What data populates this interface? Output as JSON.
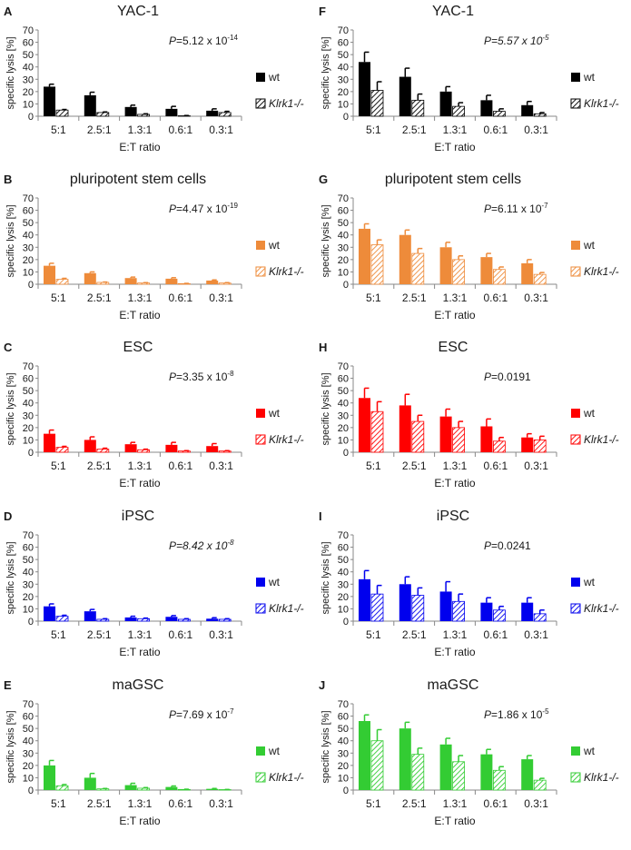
{
  "figure": {
    "ylabel": "specific lysis [%]",
    "xlabel": "E:T ratio",
    "legend_wt": "wt",
    "legend_ko": "Klrk1-/-",
    "categories": [
      "5:1",
      "2.5:1",
      "1.3:1",
      "0.6:1",
      "0.3:1"
    ]
  },
  "chart_data": [
    {
      "panel": "A",
      "type": "bar",
      "title": "YAC-1",
      "color": "#000000",
      "p_prefix": "=5.12 x 10",
      "p_exp": "-14",
      "p_italic": false,
      "ylim": [
        0,
        70
      ],
      "yticks": [
        0,
        10,
        20,
        30,
        40,
        50,
        60,
        70
      ],
      "categories": [
        "5:1",
        "2.5:1",
        "1.3:1",
        "0.6:1",
        "0.3:1"
      ],
      "series": [
        {
          "name": "wt",
          "values": [
            24,
            17,
            7.5,
            6,
            4.5
          ],
          "errors": [
            2,
            2.5,
            1.5,
            2,
            1.5
          ]
        },
        {
          "name": "Klrk1-/-",
          "values": [
            5,
            3,
            1.5,
            0.3,
            3
          ],
          "errors": [
            0.5,
            0.5,
            0.5,
            0.3,
            1
          ]
        }
      ]
    },
    {
      "panel": "B",
      "type": "bar",
      "title": "pluripotent stem cells",
      "color": "#EE8B3A",
      "p_prefix": "=4.47 x 10",
      "p_exp": "-19",
      "p_italic": false,
      "ylim": [
        0,
        70
      ],
      "yticks": [
        0,
        10,
        20,
        30,
        40,
        50,
        60,
        70
      ],
      "categories": [
        "5:1",
        "2.5:1",
        "1.3:1",
        "0.6:1",
        "0.3:1"
      ],
      "series": [
        {
          "name": "wt",
          "values": [
            15,
            9,
            5,
            4.5,
            3
          ],
          "errors": [
            2,
            1,
            0.8,
            0.8,
            0.5
          ]
        },
        {
          "name": "Klrk1-/-",
          "values": [
            4,
            1.5,
            1,
            0.5,
            1
          ],
          "errors": [
            0.8,
            0.3,
            0.3,
            0.2,
            0.3
          ]
        }
      ]
    },
    {
      "panel": "C",
      "type": "bar",
      "title": "ESC",
      "color": "#FF0000",
      "p_prefix": "=3.35 x 10",
      "p_exp": "-8",
      "p_italic": false,
      "ylim": [
        0,
        70
      ],
      "yticks": [
        0,
        10,
        20,
        30,
        40,
        50,
        60,
        70
      ],
      "categories": [
        "5:1",
        "2.5:1",
        "1.3:1",
        "0.6:1",
        "0.3:1"
      ],
      "series": [
        {
          "name": "wt",
          "values": [
            15,
            10,
            6.5,
            6,
            5
          ],
          "errors": [
            3,
            2.5,
            1.5,
            2,
            2
          ]
        },
        {
          "name": "Klrk1-/-",
          "values": [
            4,
            2.5,
            2,
            1,
            1
          ],
          "errors": [
            0.8,
            0.8,
            0.5,
            0.3,
            0.3
          ]
        }
      ]
    },
    {
      "panel": "D",
      "type": "bar",
      "title": "iPSC",
      "color": "#0000EE",
      "p_prefix": "=8.42 x 10",
      "p_exp": "-8",
      "p_italic": true,
      "ylim": [
        0,
        70
      ],
      "yticks": [
        0,
        10,
        20,
        30,
        40,
        50,
        60,
        70
      ],
      "categories": [
        "5:1",
        "2.5:1",
        "1.3:1",
        "0.6:1",
        "0.3:1"
      ],
      "series": [
        {
          "name": "wt",
          "values": [
            12,
            8,
            3,
            3.5,
            2
          ],
          "errors": [
            2,
            1.5,
            1,
            1,
            0.8
          ]
        },
        {
          "name": "Klrk1-/-",
          "values": [
            4,
            1.5,
            2,
            1.5,
            1.5
          ],
          "errors": [
            0.8,
            0.5,
            0.5,
            0.5,
            0.5
          ]
        }
      ]
    },
    {
      "panel": "E",
      "type": "bar",
      "title": "maGSC",
      "color": "#33CC33",
      "p_prefix": "=7.69 x 10",
      "p_exp": "-7",
      "p_italic": false,
      "ylim": [
        0,
        70
      ],
      "yticks": [
        0,
        10,
        20,
        30,
        40,
        50,
        60,
        70
      ],
      "categories": [
        "5:1",
        "2.5:1",
        "1.3:1",
        "0.6:1",
        "0.3:1"
      ],
      "series": [
        {
          "name": "wt",
          "values": [
            20,
            10,
            4,
            2.5,
            1
          ],
          "errors": [
            4,
            3.5,
            1.5,
            0.8,
            0.3
          ]
        },
        {
          "name": "Klrk1-/-",
          "values": [
            3.5,
            1,
            1.5,
            0.5,
            0.3
          ],
          "errors": [
            1,
            0.3,
            0.5,
            0.2,
            0.2
          ]
        }
      ]
    },
    {
      "panel": "F",
      "type": "bar",
      "title": "YAC-1",
      "color": "#000000",
      "p_prefix": "=5.57 x 10",
      "p_exp": "-5",
      "p_italic": true,
      "ylim": [
        0,
        70
      ],
      "yticks": [
        0,
        10,
        20,
        30,
        40,
        50,
        60,
        70
      ],
      "categories": [
        "5:1",
        "2.5:1",
        "1.3:1",
        "0.6:1",
        "0.3:1"
      ],
      "series": [
        {
          "name": "wt",
          "values": [
            44,
            32,
            20,
            13,
            9
          ],
          "errors": [
            8,
            7,
            4,
            4,
            3
          ]
        },
        {
          "name": "Klrk1-/-",
          "values": [
            21,
            13,
            8,
            4,
            2
          ],
          "errors": [
            7,
            5,
            3,
            2,
            1
          ]
        }
      ]
    },
    {
      "panel": "G",
      "type": "bar",
      "title": "pluripotent stem cells",
      "color": "#EE8B3A",
      "p_prefix": "=6.11 x 10",
      "p_exp": "-7",
      "p_italic": false,
      "ylim": [
        0,
        70
      ],
      "yticks": [
        0,
        10,
        20,
        30,
        40,
        50,
        60,
        70
      ],
      "categories": [
        "5:1",
        "2.5:1",
        "1.3:1",
        "0.6:1",
        "0.3:1"
      ],
      "series": [
        {
          "name": "wt",
          "values": [
            45,
            40,
            30,
            22,
            17
          ],
          "errors": [
            4,
            4,
            4,
            3,
            3
          ]
        },
        {
          "name": "Klrk1-/-",
          "values": [
            32,
            25,
            20,
            12,
            8
          ],
          "errors": [
            4,
            4,
            3,
            2,
            1.5
          ]
        }
      ]
    },
    {
      "panel": "H",
      "type": "bar",
      "title": "ESC",
      "color": "#FF0000",
      "p_prefix": "=0.0191",
      "p_exp": "",
      "p_italic": false,
      "ylim": [
        0,
        70
      ],
      "yticks": [
        0,
        10,
        20,
        30,
        40,
        50,
        60,
        70
      ],
      "categories": [
        "5:1",
        "2.5:1",
        "1.3:1",
        "0.6:1",
        "0.3:1"
      ],
      "series": [
        {
          "name": "wt",
          "values": [
            44,
            38,
            29,
            21,
            12
          ],
          "errors": [
            8,
            9,
            6,
            6,
            3
          ]
        },
        {
          "name": "Klrk1-/-",
          "values": [
            33,
            25,
            20,
            9,
            10
          ],
          "errors": [
            8,
            5,
            5,
            3,
            3
          ]
        }
      ]
    },
    {
      "panel": "I",
      "type": "bar",
      "title": "iPSC",
      "color": "#0000EE",
      "p_prefix": "=0.0241",
      "p_exp": "",
      "p_italic": false,
      "ylim": [
        0,
        70
      ],
      "yticks": [
        0,
        10,
        20,
        30,
        40,
        50,
        60,
        70
      ],
      "categories": [
        "5:1",
        "2.5:1",
        "1.3:1",
        "0.6:1",
        "0.3:1"
      ],
      "series": [
        {
          "name": "wt",
          "values": [
            34,
            30,
            24,
            15,
            15
          ],
          "errors": [
            7,
            6,
            8,
            4,
            4
          ]
        },
        {
          "name": "Klrk1-/-",
          "values": [
            22,
            21,
            16,
            9,
            6
          ],
          "errors": [
            7,
            6,
            6,
            3,
            3
          ]
        }
      ]
    },
    {
      "panel": "J",
      "type": "bar",
      "title": "maGSC",
      "color": "#33CC33",
      "p_prefix": "=1.86 x 10",
      "p_exp": "-5",
      "p_italic": false,
      "ylim": [
        0,
        70
      ],
      "yticks": [
        0,
        10,
        20,
        30,
        40,
        50,
        60,
        70
      ],
      "categories": [
        "5:1",
        "2.5:1",
        "1.3:1",
        "0.6:1",
        "0.3:1"
      ],
      "series": [
        {
          "name": "wt",
          "values": [
            56,
            50,
            37,
            29,
            25
          ],
          "errors": [
            5,
            5,
            5,
            4,
            3
          ]
        },
        {
          "name": "Klrk1-/-",
          "values": [
            40,
            29,
            23,
            16,
            8
          ],
          "errors": [
            9,
            5,
            5,
            3,
            1.5
          ]
        }
      ]
    }
  ]
}
